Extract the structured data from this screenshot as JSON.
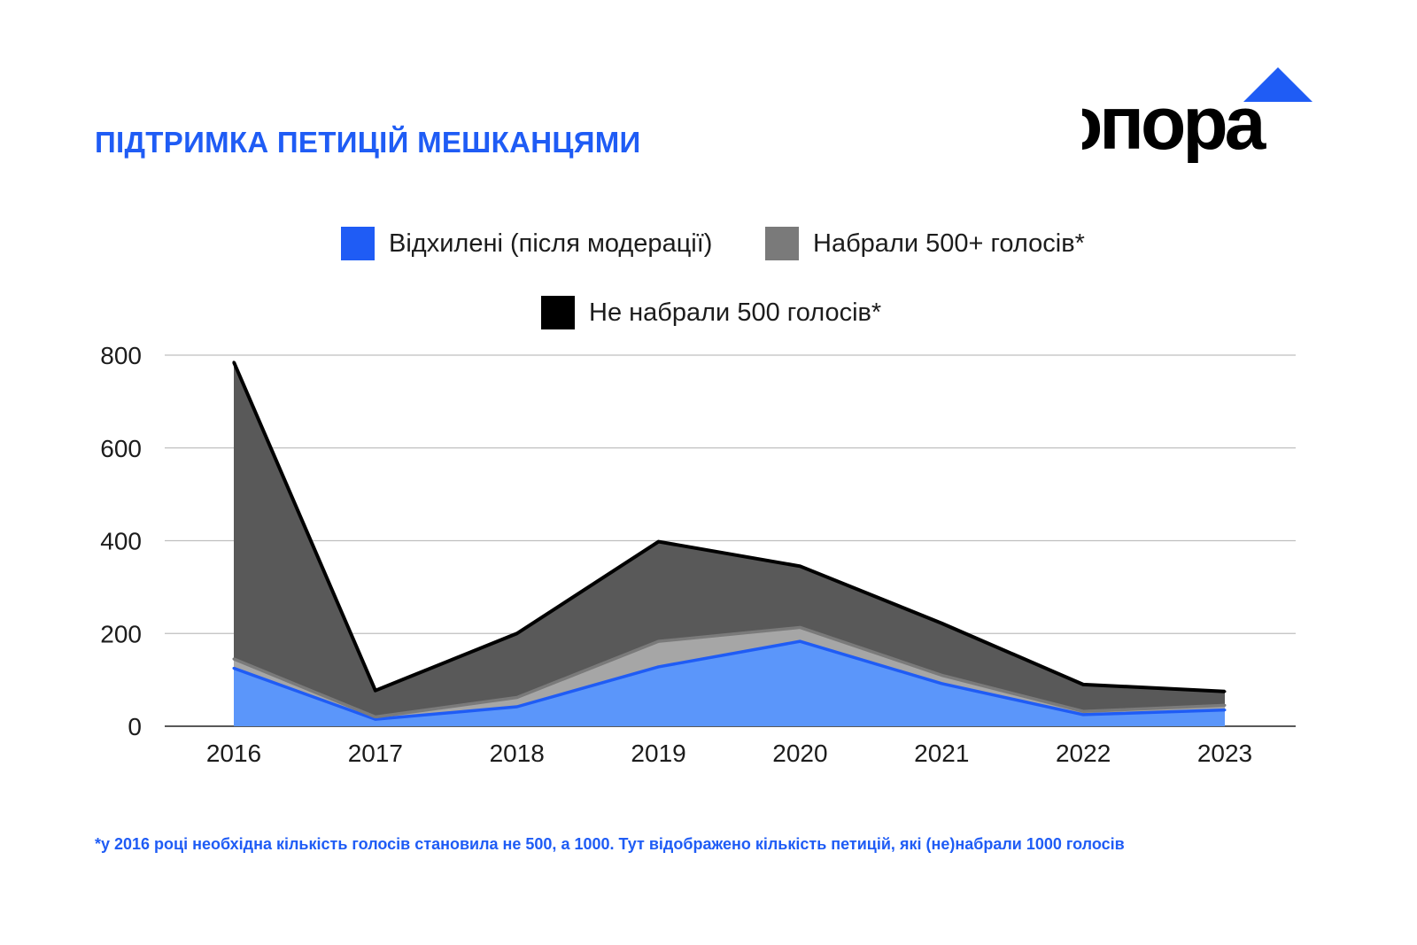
{
  "title": "ПІДТРИМКА ПЕТИЦІЙ МЕШКАНЦЯМИ",
  "logo": {
    "text": "опора",
    "colors": {
      "text": "#000000",
      "triangle": "#1f5cf5"
    }
  },
  "legend": [
    {
      "label": "Відхилені (після модерації)",
      "color": "#1f5cf5"
    },
    {
      "label": "Набрали 500+ голосів*",
      "color": "#7a7a7a"
    },
    {
      "label": "Не набрали 500 голосів*",
      "color": "#000000"
    }
  ],
  "footnote": "*у 2016 році необхідна кількість голосів становила не 500, а 1000. Тут відображено кількість петицій, які (не)набрали 1000 голосів",
  "colors": {
    "rejected_fill": "#5b96fa",
    "rejected_line": "#1f5cf5",
    "over500_fill": "#a6a6a6",
    "over500_line": "#7a7a7a",
    "under500_fill": "#595959",
    "under500_line": "#000000",
    "grid": "#bfbfbf",
    "axis": "#595959"
  },
  "chart_data": {
    "type": "area",
    "stacked": true,
    "categories": [
      "2016",
      "2017",
      "2018",
      "2019",
      "2020",
      "2021",
      "2022",
      "2023"
    ],
    "series": [
      {
        "name": "Відхилені (після модерації)",
        "values": [
          125,
          15,
          42,
          128,
          183,
          92,
          25,
          35
        ]
      },
      {
        "name": "Набрали 500+ голосів*",
        "values": [
          20,
          5,
          20,
          55,
          30,
          18,
          7,
          10
        ]
      },
      {
        "name": "Не набрали 500 голосів*",
        "values": [
          640,
          57,
          138,
          215,
          132,
          112,
          58,
          30
        ]
      }
    ],
    "ylim": [
      0,
      800
    ],
    "yticks": [
      "0",
      "200",
      "400",
      "600",
      "800"
    ],
    "grid": true,
    "legend_position": "top"
  }
}
